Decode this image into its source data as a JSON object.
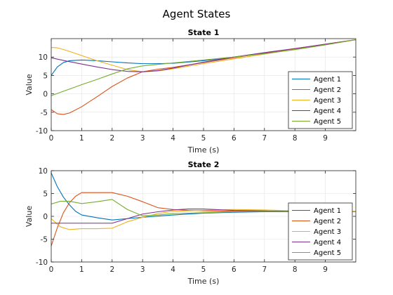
{
  "figure_title": "Agent States",
  "chart_data": [
    {
      "type": "line",
      "title": "State 1",
      "xlabel": "Time (s)",
      "ylabel": "Value",
      "xlim": [
        0,
        10
      ],
      "ylim": [
        -10,
        15
      ],
      "xticks": [
        0,
        1,
        2,
        3,
        4,
        5,
        6,
        7,
        8,
        9
      ],
      "yticks": [
        -10,
        -5,
        0,
        5,
        10
      ],
      "grid": true,
      "legend_position": "bottom-right",
      "series": [
        {
          "name": "Agent 1",
          "color": "#0072BD",
          "x": [
            0,
            0.2,
            0.4,
            0.6,
            1,
            1.5,
            2,
            2.5,
            3,
            3.5,
            4,
            5,
            6,
            7,
            8,
            9,
            10
          ],
          "y": [
            5,
            7.3,
            8.5,
            9,
            9.2,
            9,
            8.7,
            8.4,
            8.2,
            8.2,
            8.3,
            9,
            10,
            11,
            12.2,
            13.4,
            14.7
          ]
        },
        {
          "name": "Agent 2",
          "color": "#D95319",
          "x": [
            0,
            0.2,
            0.4,
            0.6,
            1,
            1.5,
            2,
            2.5,
            3,
            3.5,
            4,
            5,
            6,
            7,
            8,
            9,
            10
          ],
          "y": [
            -4.3,
            -5.4,
            -5.6,
            -5.2,
            -3.5,
            -0.8,
            2,
            4.3,
            6,
            6.7,
            7.2,
            8.5,
            9.8,
            11.1,
            12.3,
            13.5,
            14.7
          ]
        },
        {
          "name": "Agent 3",
          "color": "#EDB120",
          "x": [
            0,
            0.2,
            0.5,
            1,
            1.5,
            2,
            2.5,
            3,
            3.5,
            4,
            5,
            6,
            7,
            8,
            9,
            10
          ],
          "y": [
            12.6,
            12.5,
            11.8,
            10.4,
            9,
            7.8,
            6.6,
            6,
            6.2,
            6.8,
            8.2,
            9.5,
            10.8,
            12.2,
            13.5,
            14.7
          ]
        },
        {
          "name": "Agent 4",
          "color": "#7E2F8E",
          "x": [
            0,
            0.5,
            1,
            1.5,
            2,
            2.5,
            3,
            3.5,
            4,
            5,
            6,
            7,
            8,
            9,
            10
          ],
          "y": [
            9.8,
            8.9,
            8.1,
            7.3,
            6.6,
            6.1,
            6,
            6.3,
            7,
            8.6,
            10,
            11.2,
            12.3,
            13.5,
            14.7
          ]
        },
        {
          "name": "Agent 5",
          "color": "#77AC30",
          "x": [
            0,
            0.3,
            0.7,
            1,
            1.5,
            2,
            2.5,
            3,
            3.5,
            4,
            5,
            6,
            7,
            8,
            9,
            10
          ],
          "y": [
            -0.5,
            0.4,
            1.6,
            2.5,
            3.9,
            5.4,
            6.8,
            7.6,
            8,
            8.4,
            9.2,
            10,
            10.9,
            12,
            13.3,
            14.7
          ]
        }
      ]
    },
    {
      "type": "line",
      "title": "State 2",
      "xlabel": "Time (s)",
      "ylabel": "Value",
      "xlim": [
        0,
        10
      ],
      "ylim": [
        -10,
        10
      ],
      "xticks": [
        0,
        1,
        2,
        3,
        4,
        5,
        6,
        7,
        8,
        9
      ],
      "yticks": [
        -10,
        -5,
        0,
        5,
        10
      ],
      "grid": true,
      "legend_position": "bottom-right",
      "series": [
        {
          "name": "Agent 1",
          "color": "#0072BD",
          "x": [
            0,
            0.2,
            0.4,
            0.6,
            0.8,
            1,
            1.5,
            2,
            2.5,
            3,
            4,
            5,
            6,
            7,
            8,
            9,
            10
          ],
          "y": [
            9.5,
            6.5,
            4.2,
            2.5,
            1.1,
            0.3,
            -0.3,
            -0.8,
            -0.5,
            -0.2,
            0.3,
            0.7,
            0.9,
            1,
            1,
            1,
            1
          ]
        },
        {
          "name": "Agent 2",
          "color": "#D95319",
          "x": [
            0,
            0.2,
            0.4,
            0.6,
            0.8,
            1,
            1.5,
            2,
            2.5,
            3,
            3.5,
            4,
            4.5,
            5,
            6,
            7,
            8,
            9,
            10
          ],
          "y": [
            -6.5,
            -2.5,
            0.8,
            3,
            4.4,
            5.2,
            5.2,
            5.2,
            4.4,
            3.2,
            1.9,
            1.5,
            1.3,
            1.2,
            1.1,
            1.1,
            1,
            1,
            1
          ]
        },
        {
          "name": "Agent 3",
          "color": "#EDB120",
          "x": [
            0,
            0.3,
            0.6,
            1,
            1.5,
            2,
            2.5,
            3,
            3.5,
            4,
            5,
            6,
            7,
            8,
            9,
            10
          ],
          "y": [
            -0.5,
            -2.3,
            -2.9,
            -2.7,
            -2.7,
            -2.6,
            -1.2,
            -0.2,
            0.6,
            1.1,
            1.3,
            1.5,
            1.4,
            1.2,
            1.1,
            1.1
          ]
        },
        {
          "name": "Agent 4",
          "color": "#7E2F8E",
          "x": [
            0,
            0.5,
            1,
            1.5,
            2,
            2.5,
            3,
            3.5,
            4,
            4.5,
            5,
            6,
            7,
            8,
            9,
            10
          ],
          "y": [
            -1.5,
            -1.5,
            -1.5,
            -1.5,
            -1.5,
            -0.5,
            0.5,
            1,
            1.4,
            1.6,
            1.6,
            1.3,
            1.2,
            1.1,
            1.1,
            1
          ]
        },
        {
          "name": "Agent 5",
          "color": "#77AC30",
          "x": [
            0,
            0.3,
            0.6,
            1,
            1.5,
            2,
            2.5,
            3,
            3.5,
            4,
            5,
            6,
            7,
            8,
            9,
            10
          ],
          "y": [
            2.7,
            3.3,
            3.3,
            2.8,
            3.2,
            3.7,
            1.5,
            0.1,
            0.3,
            0.6,
            0.8,
            1,
            1.1,
            1.1,
            1,
            1
          ]
        }
      ]
    }
  ]
}
